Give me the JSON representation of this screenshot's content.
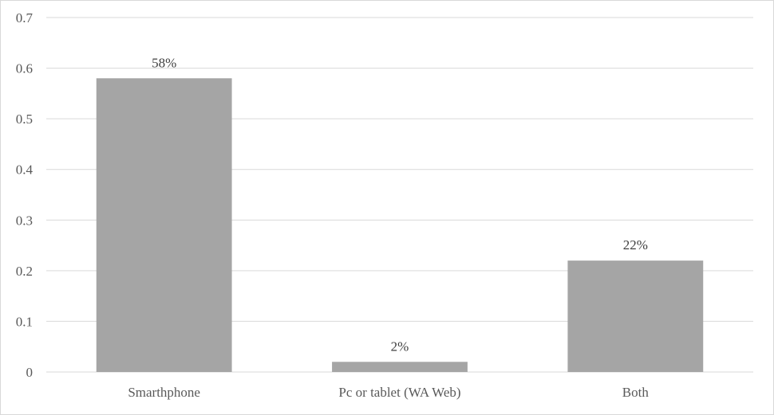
{
  "chart_data": {
    "type": "bar",
    "categories": [
      "Smarthphone",
      "Pc or tablet (WA Web)",
      "Both"
    ],
    "values": [
      0.58,
      0.02,
      0.22
    ],
    "data_labels": [
      "58%",
      "2%",
      "22%"
    ],
    "title": "",
    "xlabel": "",
    "ylabel": "",
    "ylim": [
      0,
      0.7
    ],
    "yticks": [
      "0",
      "0.1",
      "0.2",
      "0.3",
      "0.4",
      "0.5",
      "0.6",
      "0.7"
    ],
    "grid": true,
    "legend": "none",
    "bar_color": "#a5a5a5",
    "grid_color": "#d9d9d9"
  }
}
